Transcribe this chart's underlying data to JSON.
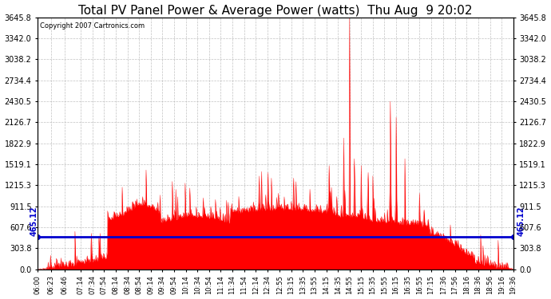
{
  "title": "Total PV Panel Power & Average Power (watts)  Thu Aug  9 20:02",
  "copyright": "Copyright 2007 Cartronics.com",
  "avg_power": 465.12,
  "y_max": 3645.8,
  "y_ticks": [
    0.0,
    303.8,
    607.6,
    911.5,
    1215.3,
    1519.1,
    1822.9,
    2126.7,
    2430.5,
    2734.4,
    3038.2,
    3342.0,
    3645.8
  ],
  "background_color": "#ffffff",
  "plot_bg_color": "#ffffff",
  "fill_color": "#ff0000",
  "line_color": "#ff0000",
  "avg_line_color": "#0000cd",
  "grid_color": "#bbbbbb",
  "title_fontsize": 11,
  "x_tick_labels": [
    "06:00",
    "06:23",
    "06:46",
    "07:14",
    "07:34",
    "07:54",
    "08:14",
    "08:34",
    "08:54",
    "09:14",
    "09:34",
    "09:54",
    "10:14",
    "10:34",
    "10:54",
    "11:14",
    "11:34",
    "11:54",
    "12:14",
    "12:34",
    "12:55",
    "13:15",
    "13:35",
    "13:55",
    "14:15",
    "14:35",
    "14:55",
    "15:15",
    "15:35",
    "15:55",
    "16:15",
    "16:35",
    "16:55",
    "17:15",
    "17:36",
    "17:56",
    "18:16",
    "18:36",
    "18:56",
    "19:16",
    "19:36"
  ]
}
